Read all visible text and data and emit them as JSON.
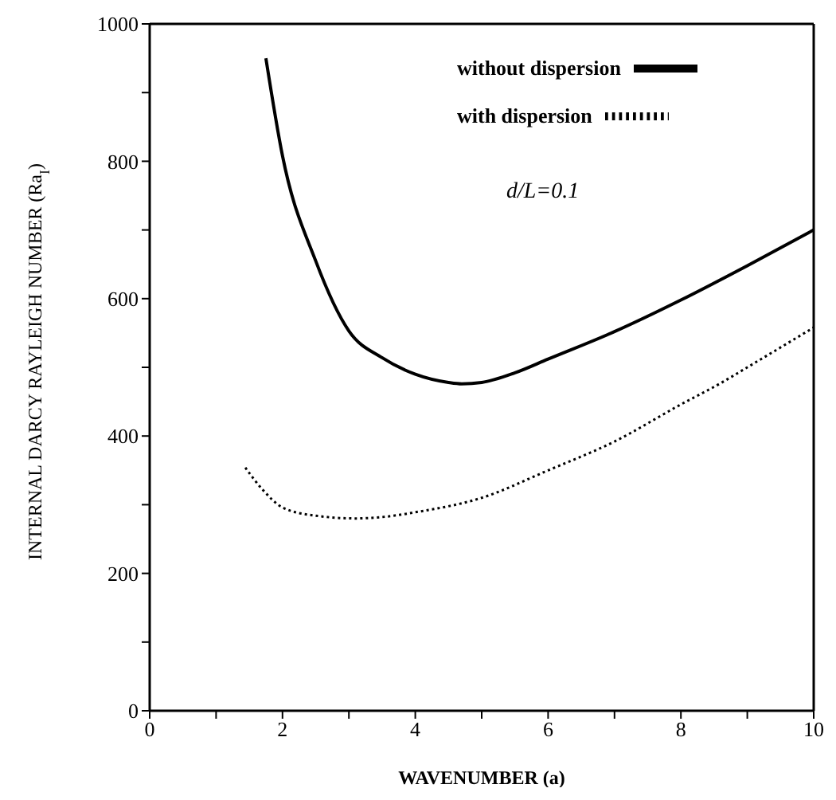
{
  "chart_data": {
    "type": "line",
    "xlabel": "WAVENUMBER (a)",
    "ylabel": "INTERNAL DARCY RAYLEIGH NUMBER  (Ra$_{I}$)",
    "xlim": [
      0,
      10
    ],
    "ylim": [
      0,
      1000
    ],
    "xticks": [
      0,
      {
        "value": 1,
        "label": null
      },
      2,
      {
        "value": 3,
        "label": null
      },
      4,
      {
        "value": 5,
        "label": null
      },
      6,
      {
        "value": 7,
        "label": null
      },
      8,
      {
        "value": 9,
        "label": null
      },
      10
    ],
    "yticks": [
      0,
      {
        "value": 100,
        "label": null
      },
      200,
      {
        "value": 300,
        "label": null
      },
      400,
      {
        "value": 500,
        "label": null
      },
      600,
      {
        "value": 700,
        "label": null
      },
      800,
      {
        "value": 900,
        "label": null
      },
      1000
    ],
    "legend": "top right",
    "marker": "none",
    "annotations": [
      "d/L=0.1"
    ],
    "series": [
      {
        "name": "without dispersion",
        "color": "#000000",
        "line_style": "solid",
        "x": [
          1.75,
          2,
          2.5,
          3,
          3.5,
          4,
          4.5,
          4.7,
          5,
          5.5,
          6,
          7,
          8,
          9,
          10
        ],
        "values": [
          950,
          808,
          655,
          553,
          514,
          490,
          478,
          476,
          478,
          492,
          512,
          552,
          598,
          648,
          700
        ]
      },
      {
        "name": "with dispersion",
        "color": "#000000",
        "line_style": "dotted",
        "x": [
          1.44,
          1.7,
          2,
          2.5,
          3.1,
          3.5,
          4,
          5,
          6,
          7,
          8,
          8.6,
          9,
          10
        ],
        "values": [
          354,
          322,
          296,
          284,
          280,
          282,
          289,
          310,
          350,
          392,
          446,
          477,
          500,
          558
        ]
      }
    ]
  }
}
